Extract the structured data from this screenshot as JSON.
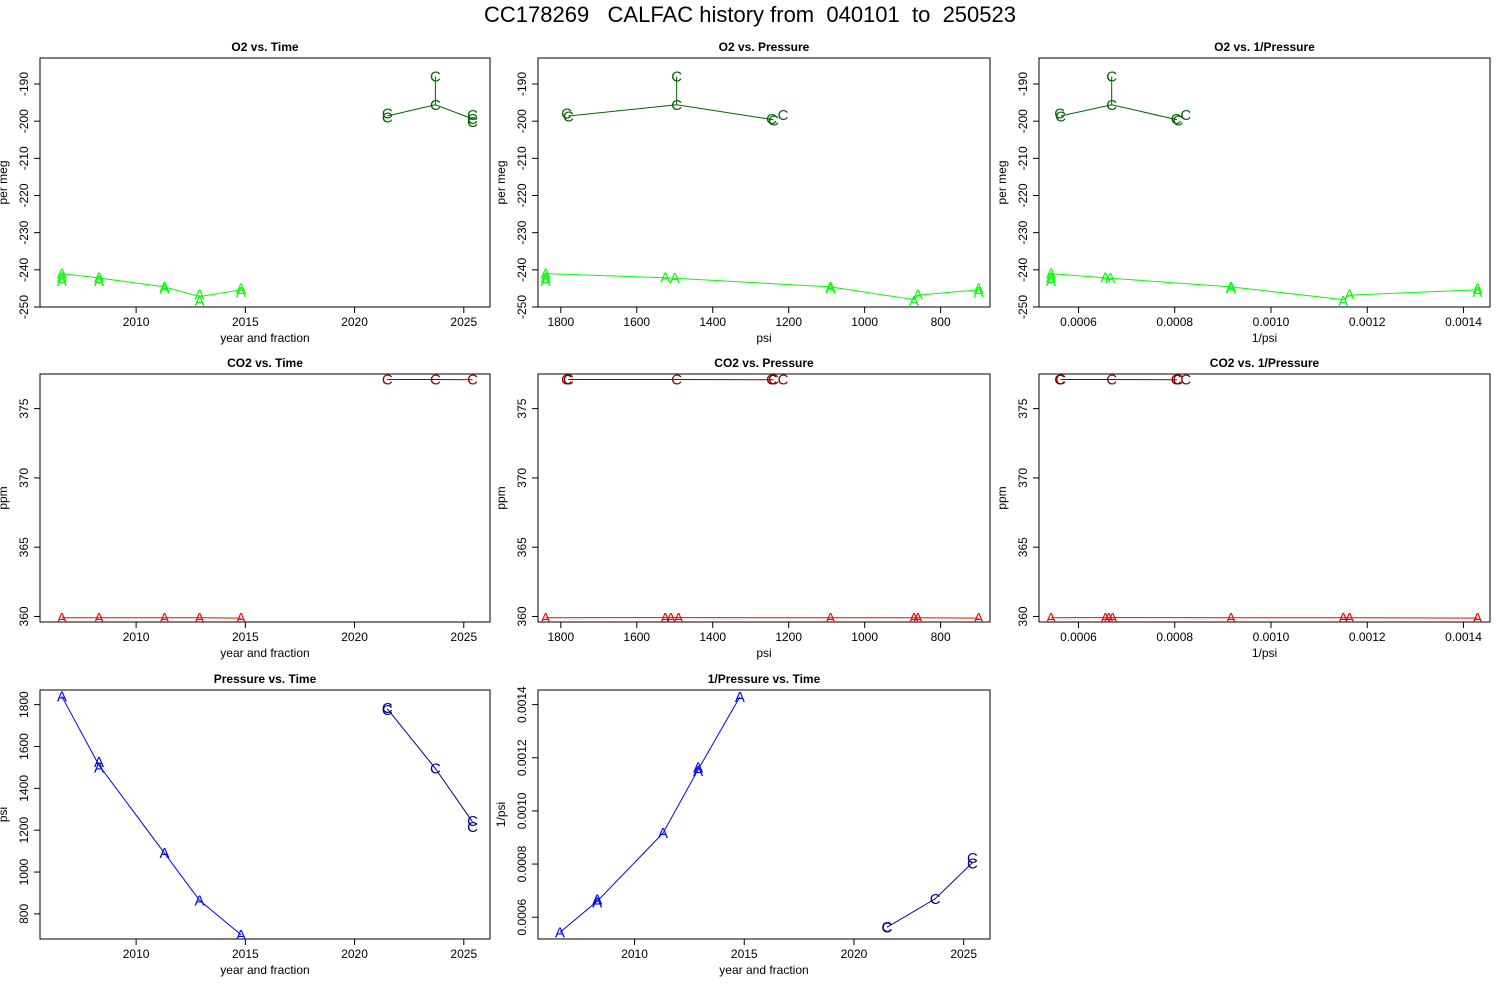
{
  "title": "CC178269   CALFAC history from  040101  to  250523",
  "colors": {
    "o2_A": "#00ff00",
    "o2_C": "#006400",
    "co2_A": "#ff0000",
    "co2_C": "#8b0000",
    "p_A": "#0000ff",
    "p_C": "#00008b"
  },
  "chart_data": [
    {
      "id": "o2_time",
      "type": "line",
      "title": "O2 vs. Time",
      "xlabel": "year and fraction",
      "ylabel": "per meg",
      "xlim": [
        2005.6,
        2026.2
      ],
      "ylim": [
        -250,
        -183
      ],
      "yreverse": false,
      "xticks": [
        2010,
        2015,
        2020,
        2025
      ],
      "xticklabels": [
        "2010",
        "2015",
        "2020",
        "2025"
      ],
      "yticks": [
        -250,
        -240,
        -230,
        -220,
        -210,
        -200,
        -190
      ],
      "yticklabels": [
        "-250",
        "-240",
        "-230",
        "-220",
        "-210",
        "-200",
        "-190"
      ],
      "series": [
        {
          "marker": "A",
          "colorKey": "o2_A",
          "x": [
            2006.6,
            2006.6,
            2006.6,
            2008.3,
            2008.3,
            2011.3,
            2011.3,
            2012.9,
            2012.9,
            2014.8,
            2014.8
          ],
          "y": [
            -241,
            -242,
            -243,
            -242,
            -243,
            -244.6,
            -245,
            -246.6,
            -248.4,
            -245,
            -246
          ],
          "line_x": [
            2006.6,
            2008.3,
            2011.3,
            2012.9,
            2014.8
          ],
          "line_y": [
            -241,
            -242.2,
            -244.6,
            -247.2,
            -245.4
          ]
        },
        {
          "marker": "C",
          "colorKey": "o2_C",
          "x": [
            2021.5,
            2021.5,
            2023.7,
            2023.7,
            2025.4,
            2025.4,
            2025.4
          ],
          "y": [
            -198,
            -199,
            -188,
            -195.6,
            -198.4,
            -199.4,
            -200.2
          ],
          "line_x": [
            2021.5,
            2023.7,
            2025.4
          ],
          "line_y": [
            -198.6,
            -195.6,
            -199.4
          ],
          "extra_segments": [
            [
              2023.7,
              -188,
              2023.7,
              -195.6
            ]
          ]
        }
      ]
    },
    {
      "id": "o2_pressure",
      "type": "line",
      "title": "O2 vs. Pressure",
      "xlabel": "psi",
      "ylabel": "per meg",
      "xlim": [
        1860,
        670
      ],
      "ylim": [
        -250,
        -183
      ],
      "yreverse": false,
      "xticks": [
        1800,
        1600,
        1400,
        1200,
        1000,
        800
      ],
      "xticklabels": [
        "1800",
        "1600",
        "1400",
        "1200",
        "1000",
        "800"
      ],
      "yticks": [
        -250,
        -240,
        -230,
        -220,
        -210,
        -200,
        -190
      ],
      "yticklabels": [
        "-250",
        "-240",
        "-230",
        "-220",
        "-210",
        "-200",
        "-190"
      ],
      "series": [
        {
          "marker": "A",
          "colorKey": "o2_A",
          "x": [
            1840,
            1840,
            1840,
            1525,
            1500,
            1090,
            1090,
            870,
            860,
            700,
            700
          ],
          "y": [
            -241,
            -242,
            -243,
            -242,
            -242.2,
            -244.6,
            -245,
            -248.4,
            -246.6,
            -245,
            -246
          ],
          "line_x": [
            1840,
            1510,
            1090,
            870,
            860,
            700
          ],
          "line_y": [
            -241,
            -242.2,
            -244.6,
            -248,
            -246.8,
            -245.4
          ]
        },
        {
          "marker": "C",
          "colorKey": "o2_C",
          "x": [
            1785,
            1780,
            1495,
            1495,
            1245,
            1240,
            1215
          ],
          "y": [
            -198,
            -198.8,
            -188,
            -195.6,
            -199.4,
            -199.8,
            -198.4
          ],
          "line_x": [
            1780,
            1495,
            1240
          ],
          "line_y": [
            -198.6,
            -195.6,
            -199.6
          ],
          "extra_segments": [
            [
              1495,
              -188,
              1495,
              -195.6
            ]
          ]
        }
      ]
    },
    {
      "id": "o2_invpressure",
      "type": "line",
      "title": "O2 vs. 1/Pressure",
      "xlabel": "1/psi",
      "ylabel": "per meg",
      "xlim": [
        0.000518,
        0.001455
      ],
      "ylim": [
        -250,
        -183
      ],
      "yreverse": false,
      "xticks": [
        0.0006,
        0.0008,
        0.001,
        0.0012,
        0.0014
      ],
      "xticklabels": [
        "0.0006",
        "0.0008",
        "0.0010",
        "0.0012",
        "0.0014"
      ],
      "yticks": [
        -250,
        -240,
        -230,
        -220,
        -210,
        -200,
        -190
      ],
      "yticklabels": [
        "-250",
        "-240",
        "-230",
        "-220",
        "-210",
        "-200",
        "-190"
      ],
      "series": [
        {
          "marker": "A",
          "colorKey": "o2_A",
          "x": [
            0.000543,
            0.000543,
            0.000543,
            0.000656,
            0.000666,
            0.000917,
            0.000917,
            0.00115,
            0.001163,
            0.001429,
            0.001429
          ],
          "y": [
            -241,
            -242,
            -243,
            -242,
            -242.2,
            -244.6,
            -245,
            -248.4,
            -246.6,
            -245,
            -246
          ],
          "line_x": [
            0.000543,
            0.00066,
            0.000917,
            0.00115,
            0.001163,
            0.001429
          ],
          "line_y": [
            -241,
            -242.2,
            -244.6,
            -248,
            -246.8,
            -245.4
          ]
        },
        {
          "marker": "C",
          "colorKey": "o2_C",
          "x": [
            0.000561,
            0.000563,
            0.000669,
            0.000669,
            0.000803,
            0.000807,
            0.000823
          ],
          "y": [
            -198,
            -198.8,
            -188,
            -195.6,
            -199.4,
            -199.8,
            -198.4
          ],
          "line_x": [
            0.000563,
            0.000669,
            0.000805
          ],
          "line_y": [
            -198.6,
            -195.6,
            -199.6
          ],
          "extra_segments": [
            [
              0.000669,
              -188,
              0.000669,
              -195.6
            ]
          ]
        }
      ]
    },
    {
      "id": "co2_time",
      "type": "line",
      "title": "CO2 vs. Time",
      "xlabel": "year and fraction",
      "ylabel": "ppm",
      "xlim": [
        2005.6,
        2026.2
      ],
      "ylim": [
        359.6,
        377.5
      ],
      "yreverse": false,
      "xticks": [
        2010,
        2015,
        2020,
        2025
      ],
      "xticklabels": [
        "2010",
        "2015",
        "2020",
        "2025"
      ],
      "yticks": [
        360,
        365,
        370,
        375
      ],
      "yticklabels": [
        "360",
        "365",
        "370",
        "375"
      ],
      "series": [
        {
          "marker": "A",
          "colorKey": "co2_A",
          "x": [
            2006.6,
            2008.3,
            2011.3,
            2012.9,
            2014.8
          ],
          "y": [
            359.9,
            359.9,
            359.9,
            359.9,
            359.9
          ],
          "line_x": [
            2006.6,
            2008.3,
            2011.3,
            2012.9,
            2014.8
          ],
          "line_y": [
            359.9,
            359.9,
            359.9,
            359.9,
            359.88
          ]
        },
        {
          "marker": "C",
          "colorKey": "co2_C",
          "x": [
            2021.5,
            2023.7,
            2025.4
          ],
          "y": [
            377.1,
            377.1,
            377.1
          ],
          "line_x": [
            2021.5,
            2023.7,
            2025.4
          ],
          "line_y": [
            377.1,
            377.1,
            377.08
          ]
        }
      ]
    },
    {
      "id": "co2_pressure",
      "type": "line",
      "title": "CO2 vs. Pressure",
      "xlabel": "psi",
      "ylabel": "ppm",
      "xlim": [
        1860,
        670
      ],
      "ylim": [
        359.6,
        377.5
      ],
      "yreverse": false,
      "xticks": [
        1800,
        1600,
        1400,
        1200,
        1000,
        800
      ],
      "xticklabels": [
        "1800",
        "1600",
        "1400",
        "1200",
        "1000",
        "800"
      ],
      "yticks": [
        360,
        365,
        370,
        375
      ],
      "yticklabels": [
        "360",
        "365",
        "370",
        "375"
      ],
      "series": [
        {
          "marker": "A",
          "colorKey": "co2_A",
          "x": [
            1840,
            1525,
            1510,
            1490,
            1090,
            870,
            860,
            700
          ],
          "y": [
            359.9,
            359.9,
            359.9,
            359.9,
            359.9,
            359.9,
            359.9,
            359.9
          ],
          "line_x": [
            1840,
            1510,
            1090,
            870,
            700
          ],
          "line_y": [
            359.9,
            359.92,
            359.9,
            359.9,
            359.88
          ]
        },
        {
          "marker": "C",
          "colorKey": "co2_C",
          "x": [
            1785,
            1780,
            1495,
            1245,
            1240,
            1215
          ],
          "y": [
            377.1,
            377.1,
            377.1,
            377.1,
            377.1,
            377.1
          ],
          "line_x": [
            1780,
            1495,
            1240
          ],
          "line_y": [
            377.1,
            377.1,
            377.08
          ]
        }
      ]
    },
    {
      "id": "co2_invpressure",
      "type": "line",
      "title": "CO2 vs. 1/Pressure",
      "xlabel": "1/psi",
      "ylabel": "ppm",
      "xlim": [
        0.000518,
        0.001455
      ],
      "ylim": [
        359.6,
        377.5
      ],
      "yreverse": false,
      "xticks": [
        0.0006,
        0.0008,
        0.001,
        0.0012,
        0.0014
      ],
      "xticklabels": [
        "0.0006",
        "0.0008",
        "0.0010",
        "0.0012",
        "0.0014"
      ],
      "yticks": [
        360,
        365,
        370,
        375
      ],
      "yticklabels": [
        "360",
        "365",
        "370",
        "375"
      ],
      "series": [
        {
          "marker": "A",
          "colorKey": "co2_A",
          "x": [
            0.000543,
            0.000656,
            0.000663,
            0.000671,
            0.000917,
            0.00115,
            0.001163,
            0.001429
          ],
          "y": [
            359.9,
            359.9,
            359.9,
            359.9,
            359.9,
            359.9,
            359.9,
            359.9
          ],
          "line_x": [
            0.000543,
            0.00066,
            0.000917,
            0.00115,
            0.001429
          ],
          "line_y": [
            359.9,
            359.92,
            359.9,
            359.9,
            359.88
          ]
        },
        {
          "marker": "C",
          "colorKey": "co2_C",
          "x": [
            0.000561,
            0.000563,
            0.000669,
            0.000803,
            0.000807,
            0.000823
          ],
          "y": [
            377.1,
            377.1,
            377.1,
            377.1,
            377.1,
            377.1
          ],
          "line_x": [
            0.000563,
            0.000669,
            0.000805
          ],
          "line_y": [
            377.1,
            377.1,
            377.08
          ]
        }
      ]
    },
    {
      "id": "pressure_time",
      "type": "line",
      "title": "Pressure vs. Time",
      "xlabel": "year and fraction",
      "ylabel": "psi",
      "xlim": [
        2005.6,
        2026.2
      ],
      "ylim": [
        680,
        1870
      ],
      "yreverse": false,
      "xticks": [
        2010,
        2015,
        2020,
        2025
      ],
      "xticklabels": [
        "2010",
        "2015",
        "2020",
        "2025"
      ],
      "yticks": [
        800,
        1000,
        1200,
        1400,
        1600,
        1800
      ],
      "yticklabels": [
        "800",
        "1000",
        "1200",
        "1400",
        "1600",
        "1800"
      ],
      "series": [
        {
          "marker": "A",
          "colorKey": "p_A",
          "x": [
            2006.6,
            2008.3,
            2008.3,
            2011.3,
            2012.9,
            2014.8
          ],
          "y": [
            1840,
            1525,
            1500,
            1090,
            865,
            700
          ],
          "line_x": [
            2006.6,
            2008.3,
            2011.3,
            2012.9,
            2014.8
          ],
          "line_y": [
            1840,
            1510,
            1090,
            865,
            700
          ]
        },
        {
          "marker": "C",
          "colorKey": "p_C",
          "x": [
            2021.5,
            2021.5,
            2023.7,
            2025.4,
            2025.4
          ],
          "y": [
            1785,
            1775,
            1495,
            1245,
            1215
          ],
          "line_x": [
            2021.5,
            2023.7,
            2025.4
          ],
          "line_y": [
            1780,
            1495,
            1240
          ]
        }
      ]
    },
    {
      "id": "invpressure_time",
      "type": "line",
      "title": "1/Pressure vs. Time",
      "xlabel": "year and fraction",
      "ylabel": "1/psi",
      "xlim": [
        2005.6,
        2026.2
      ],
      "ylim": [
        0.000518,
        0.001455
      ],
      "yreverse": false,
      "xticks": [
        2010,
        2015,
        2020,
        2025
      ],
      "xticklabels": [
        "2010",
        "2015",
        "2020",
        "2025"
      ],
      "yticks": [
        0.0006,
        0.0008,
        0.001,
        0.0012,
        0.0014
      ],
      "yticklabels": [
        "0.0006",
        "0.0008",
        "0.0010",
        "0.0012",
        "0.0014"
      ],
      "series": [
        {
          "marker": "A",
          "colorKey": "p_A",
          "x": [
            2006.6,
            2008.3,
            2008.3,
            2011.3,
            2012.9,
            2012.9,
            2014.8
          ],
          "y": [
            0.000543,
            0.000656,
            0.000666,
            0.000917,
            0.00115,
            0.001163,
            0.001429
          ],
          "line_x": [
            2006.6,
            2008.3,
            2011.3,
            2012.9,
            2014.8
          ],
          "line_y": [
            0.000543,
            0.00066,
            0.000917,
            0.001156,
            0.001429
          ]
        },
        {
          "marker": "C",
          "colorKey": "p_C",
          "x": [
            2021.5,
            2021.5,
            2023.7,
            2025.4,
            2025.4
          ],
          "y": [
            0.000561,
            0.000563,
            0.000669,
            0.000803,
            0.000823
          ],
          "line_x": [
            2021.5,
            2023.7,
            2025.4
          ],
          "line_y": [
            0.000562,
            0.000669,
            0.000805
          ]
        }
      ]
    }
  ]
}
